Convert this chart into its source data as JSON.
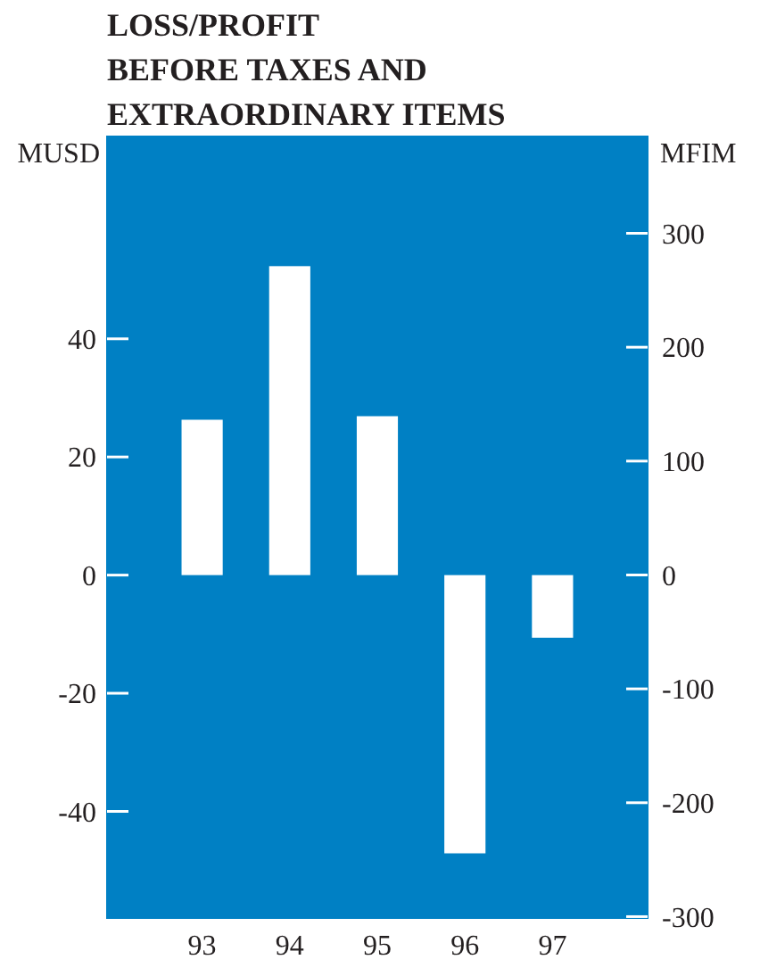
{
  "chart_data": {
    "type": "bar",
    "title": "LOSS/PROFIT\nBEFORE TAXES AND\nEXTRAORDINARY ITEMS",
    "ylabel": "MUSD",
    "y2label": "MFIM",
    "categories": [
      "93",
      "94",
      "95",
      "96",
      "97"
    ],
    "values": [
      26.3,
      52.3,
      26.9,
      -47.1,
      -10.6
    ],
    "color": "#ffffff",
    "ylim": [
      -58.2,
      74.4
    ],
    "yticks": [
      -40,
      -20,
      0,
      20,
      40
    ],
    "y2lim": [
      -302,
      385.8
    ],
    "y2ticks": [
      -300,
      -200,
      -100,
      0,
      100,
      200,
      300
    ],
    "grid": false
  }
}
